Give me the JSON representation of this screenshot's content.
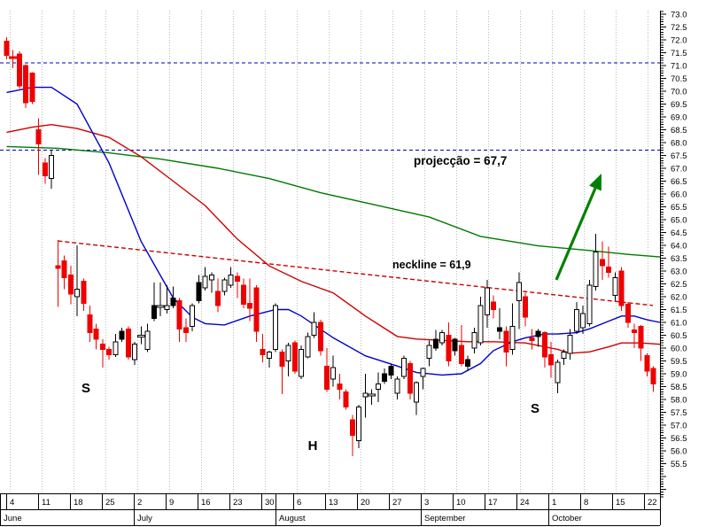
{
  "chart_data": {
    "type": "candlestick",
    "description": "Daily candlestick stock chart (June-October) showing an inverse head-and-shoulders pattern with neckline breakout and upward projection arrow",
    "ylim": [
      55.5,
      73.0
    ],
    "grid": "weekly vertical dotted gridlines",
    "legend_position": "none",
    "y_axis": {
      "side": "right",
      "tick_step": 0.5,
      "minor_tick_step": 0.1,
      "tick_labels": [
        "73.0",
        "72.5",
        "72.0",
        "71.5",
        "71.0",
        "70.5",
        "70.0",
        "69.5",
        "69.0",
        "68.5",
        "68.0",
        "67.5",
        "67.0",
        "66.5",
        "66.0",
        "65.5",
        "65.0",
        "64.5",
        "64.0",
        "63.5",
        "63.0",
        "62.5",
        "62.0",
        "61.5",
        "61.0",
        "60.5",
        "60.0",
        "59.5",
        "59.0",
        "58.5",
        "58.0",
        "57.5",
        "57.0",
        "56.5",
        "56.0",
        "55.5"
      ]
    },
    "x_axis": {
      "week_labels": [
        "4",
        "11",
        "18",
        "25",
        "2",
        "9",
        "16",
        "23",
        "30",
        "6",
        "13",
        "20",
        "27",
        "3",
        "10",
        "17",
        "24",
        "1",
        "8",
        "15",
        "22"
      ],
      "week_separators_x": [
        7,
        43,
        79,
        115,
        151,
        187,
        223,
        259,
        295,
        331,
        367,
        403,
        439,
        475,
        511,
        547,
        583,
        619,
        655,
        691,
        727
      ],
      "extra_month_separator_x": 311,
      "gridlines_x": [
        11,
        47,
        83,
        119,
        155,
        191,
        227,
        263,
        299,
        335,
        371,
        407,
        443,
        479,
        515,
        551,
        587,
        623,
        659,
        695,
        731
      ],
      "months": [
        {
          "label": "June",
          "x1": 0,
          "x2": 151
        },
        {
          "label": "July",
          "x1": 151,
          "x2": 311
        },
        {
          "label": "August",
          "x1": 311,
          "x2": 475
        },
        {
          "label": "September",
          "x1": 475,
          "x2": 619
        },
        {
          "label": "October",
          "x1": 619,
          "x2": 745
        }
      ]
    },
    "levels": [
      {
        "name": "upper-dashed-level",
        "price": 71.1
      },
      {
        "name": "projection-level",
        "price": 67.7
      }
    ],
    "neckline": {
      "i1": 8,
      "p1": 64.17,
      "x2": 737,
      "p2": 61.66,
      "value_label": "61,9"
    },
    "annotations": {
      "projection_text": "projecção = 67,7",
      "neckline_text": "neckline = 61,9",
      "left_shoulder": "S",
      "head": "H",
      "right_shoulder": "S",
      "projection_pos": [
        467,
        186
      ],
      "neckline_pos": [
        443,
        303
      ],
      "s1_pos": [
        97,
        443
      ],
      "h_pos": [
        353,
        508
      ],
      "s2_pos": [
        604,
        466
      ]
    },
    "arrow": {
      "tip": [
        679,
        196
      ],
      "tail": [
        628,
        316
      ]
    },
    "moving_averages": [
      {
        "name": "ma-green",
        "color": "#007a00",
        "points": [
          [
            0,
            67.85
          ],
          [
            8,
            67.78
          ],
          [
            16,
            67.6
          ],
          [
            24,
            67.36
          ],
          [
            33,
            67.0
          ],
          [
            41,
            66.6
          ],
          [
            49,
            66.05
          ],
          [
            58,
            65.55
          ],
          [
            66,
            65.1
          ],
          [
            74,
            64.35
          ],
          [
            83,
            63.98
          ],
          [
            91,
            63.8
          ],
          [
            97,
            63.65
          ],
          [
            102,
            63.55
          ]
        ]
      },
      {
        "name": "ma-red",
        "color": "#cc0000",
        "points": [
          [
            0,
            68.4
          ],
          [
            4,
            68.6
          ],
          [
            7,
            68.7
          ],
          [
            11,
            68.55
          ],
          [
            16,
            68.2
          ],
          [
            21,
            67.45
          ],
          [
            26,
            66.5
          ],
          [
            31,
            65.55
          ],
          [
            36,
            64.25
          ],
          [
            41,
            63.2
          ],
          [
            46,
            62.6
          ],
          [
            51,
            62.15
          ],
          [
            56,
            61.25
          ],
          [
            61,
            60.45
          ],
          [
            64,
            60.35
          ],
          [
            68,
            60.3
          ],
          [
            72,
            60.25
          ],
          [
            76,
            60.25
          ],
          [
            81,
            60.2
          ],
          [
            84,
            60.05
          ],
          [
            86,
            59.95
          ],
          [
            88,
            59.8
          ],
          [
            91,
            59.85
          ],
          [
            94,
            60.05
          ],
          [
            96,
            60.2
          ],
          [
            99,
            60.2
          ],
          [
            102,
            60.15
          ]
        ]
      },
      {
        "name": "ma-blue",
        "color": "#0000cc",
        "points": [
          [
            0,
            69.95
          ],
          [
            4,
            70.15
          ],
          [
            7,
            70.15
          ],
          [
            11,
            69.5
          ],
          [
            16,
            67.2
          ],
          [
            21,
            64.15
          ],
          [
            26,
            61.95
          ],
          [
            29,
            61.2
          ],
          [
            31,
            60.95
          ],
          [
            34,
            60.9
          ],
          [
            38,
            61.25
          ],
          [
            42,
            61.5
          ],
          [
            44,
            61.5
          ],
          [
            46,
            61.25
          ],
          [
            51,
            60.4
          ],
          [
            56,
            59.7
          ],
          [
            61,
            59.3
          ],
          [
            64,
            59.05
          ],
          [
            68,
            58.95
          ],
          [
            71,
            59.0
          ],
          [
            74,
            59.4
          ],
          [
            76,
            59.9
          ],
          [
            79,
            60.25
          ],
          [
            81,
            60.4
          ],
          [
            84,
            60.55
          ],
          [
            86,
            60.55
          ],
          [
            89,
            60.6
          ],
          [
            91,
            60.75
          ],
          [
            94,
            61.05
          ],
          [
            96,
            61.25
          ],
          [
            98,
            61.25
          ],
          [
            100,
            61.1
          ],
          [
            102,
            61.0
          ]
        ]
      }
    ],
    "candles": [
      [
        71.95,
        72.1,
        71.25,
        71.4,
        "r"
      ],
      [
        71.35,
        71.6,
        70.9,
        71.3,
        "r"
      ],
      [
        71.45,
        71.55,
        70.1,
        70.2,
        "r"
      ],
      [
        71.0,
        71.05,
        69.35,
        69.55,
        "r"
      ],
      [
        70.7,
        70.75,
        69.5,
        69.6,
        "r"
      ],
      [
        68.5,
        68.95,
        66.75,
        67.95,
        "r"
      ],
      [
        67.2,
        67.4,
        66.4,
        66.7,
        "r"
      ],
      [
        66.6,
        67.7,
        66.2,
        67.5,
        "w"
      ],
      [
        63.2,
        64.2,
        61.6,
        63.1,
        "r"
      ],
      [
        63.4,
        63.6,
        62.3,
        62.75,
        "r"
      ],
      [
        62.85,
        63.2,
        61.7,
        62.1,
        "r"
      ],
      [
        62.0,
        64.0,
        61.25,
        62.3,
        "w"
      ],
      [
        62.6,
        62.7,
        61.45,
        61.75,
        "r"
      ],
      [
        61.3,
        61.65,
        60.25,
        60.6,
        "r"
      ],
      [
        60.75,
        60.95,
        59.95,
        60.35,
        "r"
      ],
      [
        60.15,
        60.35,
        59.25,
        59.95,
        "r"
      ],
      [
        59.95,
        60.05,
        59.55,
        59.75,
        "r"
      ],
      [
        59.75,
        60.55,
        59.65,
        60.25,
        "w"
      ],
      [
        60.65,
        60.8,
        60.25,
        60.35,
        "k"
      ],
      [
        60.75,
        60.85,
        59.55,
        59.65,
        "r"
      ],
      [
        59.55,
        60.25,
        59.35,
        60.15,
        "w"
      ],
      [
        60.45,
        60.85,
        60.15,
        60.5,
        "w"
      ],
      [
        59.95,
        60.95,
        59.85,
        60.65,
        "w"
      ],
      [
        61.15,
        62.55,
        61.05,
        61.65,
        "k"
      ],
      [
        61.65,
        62.55,
        61.25,
        61.6,
        "w"
      ],
      [
        61.5,
        62.45,
        61.35,
        61.65,
        "w"
      ],
      [
        61.65,
        62.4,
        61.55,
        61.95,
        "k"
      ],
      [
        61.85,
        61.95,
        60.25,
        60.75,
        "r"
      ],
      [
        60.8,
        61.15,
        60.25,
        60.6,
        "r"
      ],
      [
        60.85,
        61.75,
        60.65,
        61.65,
        "w"
      ],
      [
        61.85,
        62.85,
        61.75,
        62.55,
        "k"
      ],
      [
        62.35,
        63.15,
        62.25,
        62.8,
        "w"
      ],
      [
        62.65,
        62.95,
        62.15,
        62.85,
        "w"
      ],
      [
        62.2,
        62.7,
        61.4,
        61.65,
        "r"
      ],
      [
        62.2,
        62.75,
        62.05,
        62.65,
        "w"
      ],
      [
        62.45,
        63.15,
        62.35,
        62.85,
        "w"
      ],
      [
        62.8,
        62.95,
        61.95,
        62.6,
        "r"
      ],
      [
        62.45,
        62.7,
        61.55,
        61.7,
        "r"
      ],
      [
        61.75,
        62.7,
        61.05,
        61.55,
        "r"
      ],
      [
        62.35,
        62.45,
        60.25,
        60.65,
        "r"
      ],
      [
        59.95,
        60.55,
        59.45,
        59.75,
        "r"
      ],
      [
        59.6,
        59.9,
        59.25,
        59.85,
        "w"
      ],
      [
        59.95,
        61.75,
        59.85,
        61.65,
        "w"
      ],
      [
        59.85,
        59.95,
        58.2,
        59.3,
        "r"
      ],
      [
        59.5,
        60.2,
        58.9,
        60.1,
        "w"
      ],
      [
        60.2,
        60.3,
        59.0,
        59.1,
        "r"
      ],
      [
        58.9,
        60.1,
        58.8,
        59.95,
        "w"
      ],
      [
        59.65,
        60.6,
        59.6,
        60.45,
        "w"
      ],
      [
        60.5,
        61.4,
        60.4,
        61.0,
        "w"
      ],
      [
        61.0,
        61.1,
        59.7,
        59.9,
        "r"
      ],
      [
        59.3,
        60.0,
        58.3,
        58.4,
        "r"
      ],
      [
        58.8,
        59.7,
        58.5,
        59.25,
        "w"
      ],
      [
        58.6,
        59.0,
        58.0,
        58.4,
        "r"
      ],
      [
        58.3,
        58.4,
        57.6,
        57.7,
        "r"
      ],
      [
        57.2,
        57.4,
        55.8,
        56.6,
        "r"
      ],
      [
        56.4,
        57.8,
        56.1,
        57.7,
        "w"
      ],
      [
        58.1,
        59.0,
        57.3,
        58.25,
        "w"
      ],
      [
        58.15,
        58.4,
        57.8,
        58.2,
        "w"
      ],
      [
        58.4,
        59.05,
        57.9,
        58.6,
        "w"
      ],
      [
        59.0,
        59.2,
        58.6,
        58.7,
        "k"
      ],
      [
        58.95,
        59.4,
        58.8,
        59.3,
        "k"
      ],
      [
        58.8,
        58.9,
        58.0,
        58.25,
        "w"
      ],
      [
        58.9,
        59.7,
        58.8,
        59.6,
        "w"
      ],
      [
        59.4,
        59.5,
        58.0,
        58.25,
        "r"
      ],
      [
        57.9,
        58.7,
        57.4,
        58.65,
        "w"
      ],
      [
        58.9,
        59.25,
        58.4,
        59.2,
        "w"
      ],
      [
        59.6,
        60.3,
        59.3,
        60.1,
        "w"
      ],
      [
        60.0,
        60.7,
        59.9,
        60.35,
        "k"
      ],
      [
        60.2,
        60.7,
        60.1,
        60.6,
        "w"
      ],
      [
        60.5,
        61.0,
        59.3,
        59.5,
        "r"
      ],
      [
        59.9,
        60.4,
        59.7,
        60.35,
        "k"
      ],
      [
        60.1,
        60.9,
        59.3,
        59.4,
        "r"
      ],
      [
        59.3,
        59.7,
        59.1,
        59.55,
        "k"
      ],
      [
        60.0,
        60.8,
        59.8,
        60.6,
        "w"
      ],
      [
        60.2,
        62.0,
        60.1,
        61.65,
        "w"
      ],
      [
        61.3,
        62.65,
        60.8,
        62.35,
        "w"
      ],
      [
        61.8,
        62.05,
        61.15,
        61.5,
        "r"
      ],
      [
        60.8,
        61.55,
        60.35,
        60.65,
        "k"
      ],
      [
        60.65,
        60.85,
        59.3,
        59.85,
        "r"
      ],
      [
        59.95,
        61.75,
        59.75,
        60.85,
        "w"
      ],
      [
        61.85,
        62.95,
        60.75,
        62.55,
        "w"
      ],
      [
        62.0,
        62.15,
        60.85,
        61.2,
        "r"
      ],
      [
        60.4,
        60.75,
        59.95,
        60.3,
        "r"
      ],
      [
        60.65,
        60.75,
        60.05,
        60.45,
        "k"
      ],
      [
        60.6,
        60.65,
        59.25,
        59.65,
        "r"
      ],
      [
        59.75,
        60.25,
        58.85,
        59.35,
        "r"
      ],
      [
        58.65,
        59.55,
        58.25,
        59.45,
        "w"
      ],
      [
        59.6,
        59.95,
        59.35,
        59.85,
        "w"
      ],
      [
        59.8,
        60.75,
        59.55,
        60.5,
        "w"
      ],
      [
        60.65,
        61.8,
        60.55,
        61.5,
        "w"
      ],
      [
        60.8,
        61.65,
        60.55,
        61.35,
        "w"
      ],
      [
        60.95,
        62.65,
        60.85,
        62.45,
        "w"
      ],
      [
        62.4,
        64.45,
        62.25,
        63.75,
        "w"
      ],
      [
        63.45,
        64.15,
        62.65,
        63.2,
        "r"
      ],
      [
        63.15,
        63.95,
        62.75,
        62.95,
        "r"
      ],
      [
        62.05,
        62.95,
        61.85,
        62.75,
        "w"
      ],
      [
        63.0,
        63.15,
        61.45,
        61.65,
        "r"
      ],
      [
        61.7,
        61.8,
        60.8,
        61.0,
        "r"
      ],
      [
        60.7,
        60.95,
        60.0,
        60.6,
        "r"
      ],
      [
        60.85,
        60.9,
        59.5,
        60.0,
        "r"
      ],
      [
        59.7,
        59.8,
        58.9,
        59.1,
        "r"
      ],
      [
        59.2,
        59.3,
        58.3,
        58.6,
        "r"
      ]
    ],
    "colors": {
      "down_candle": "#ee0000",
      "up_candle_fill": "#ffffff",
      "up_candle_border": "#000000",
      "black_candle": "#000000",
      "dashed_level": "#0000bf",
      "neckline": "#cc0000",
      "arrow": "#008000",
      "gridline": "#b9b9b9",
      "axis": "#000000"
    }
  }
}
